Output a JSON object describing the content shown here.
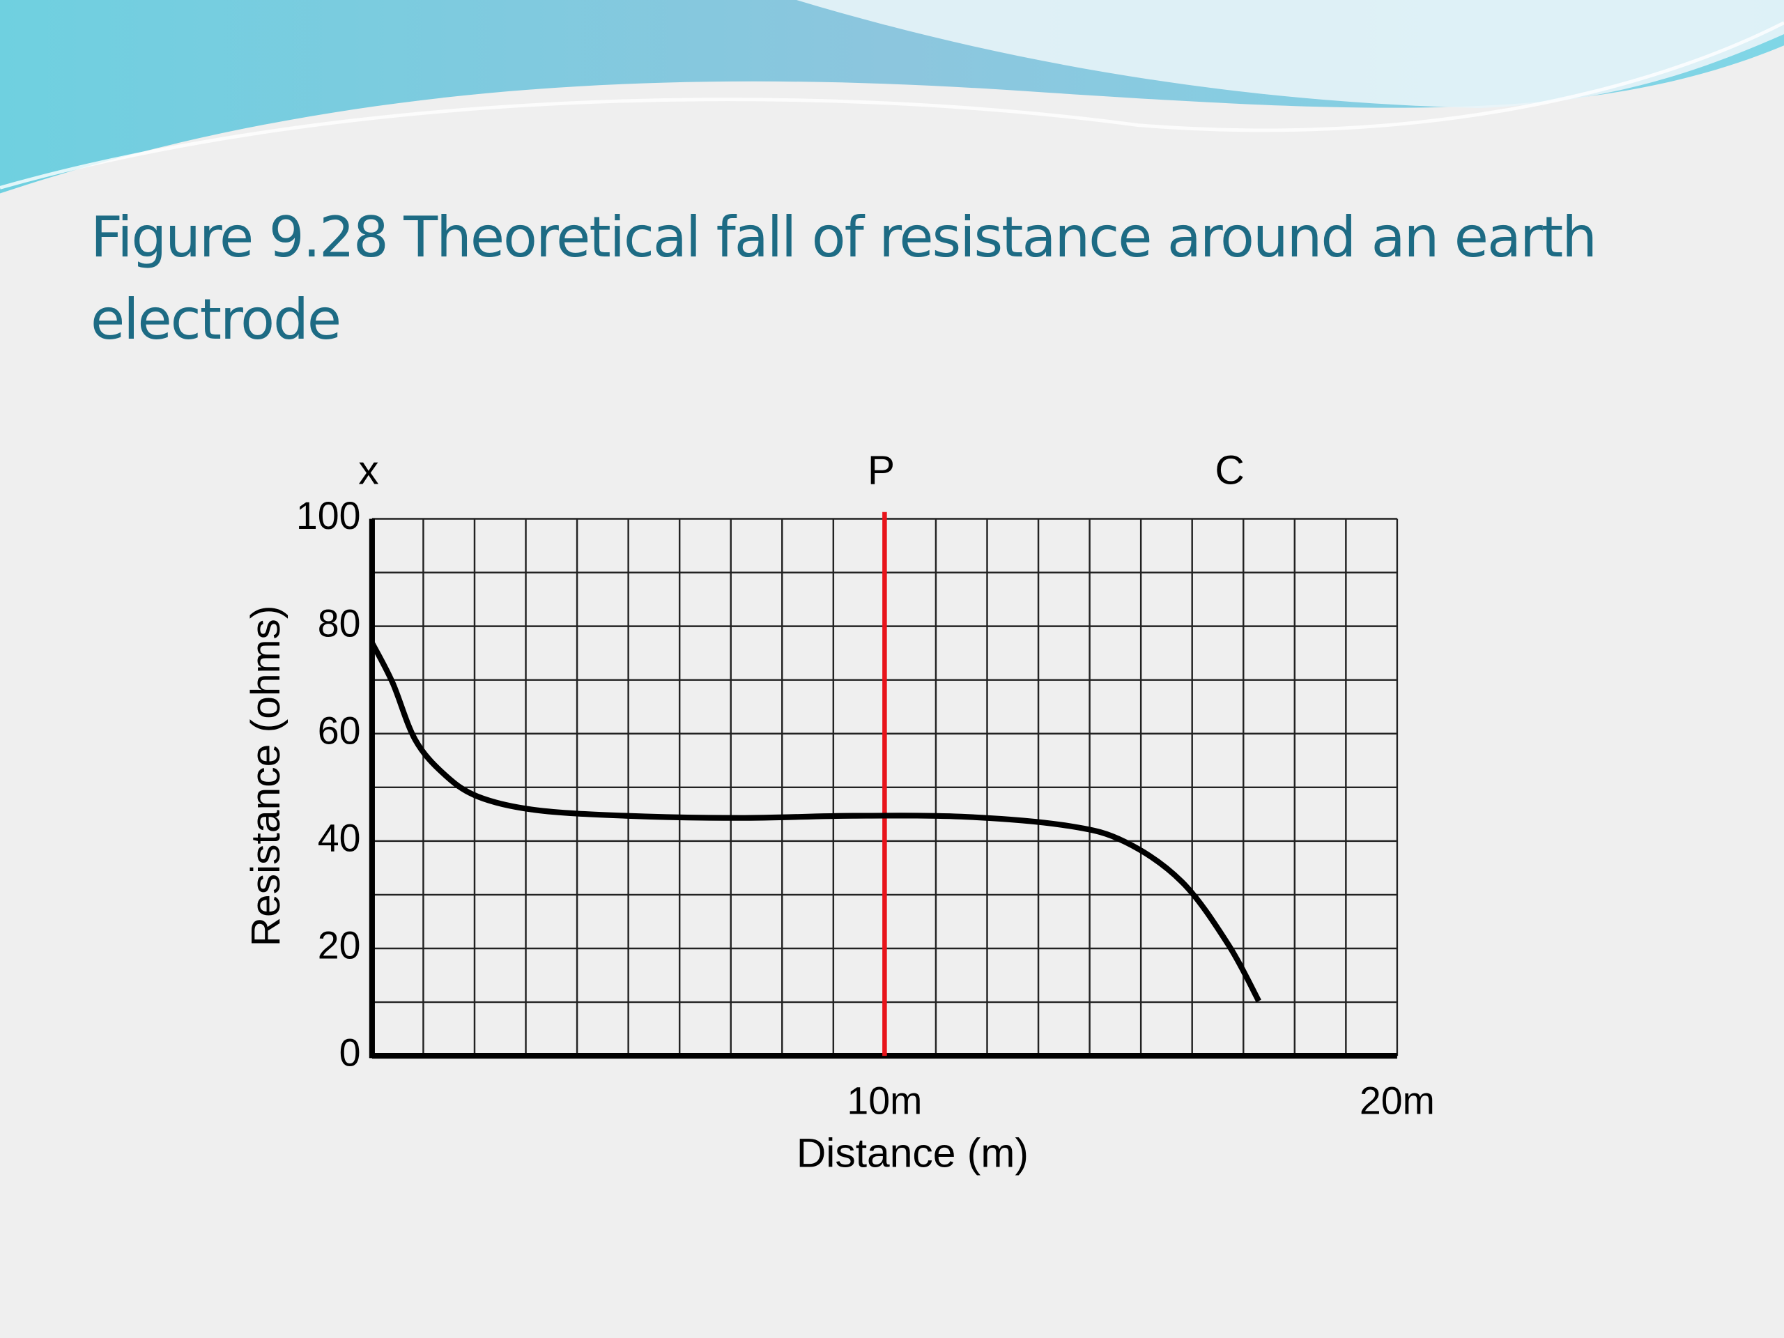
{
  "title": "Figure 9.28 Theoretical fall of resistance around an earth electrode",
  "chart_data": {
    "type": "line",
    "xlabel": "Distance (m)",
    "ylabel": "Resistance (ohms)",
    "xlim": [
      0,
      20
    ],
    "ylim": [
      0,
      100
    ],
    "xticks": [
      {
        "value": 10,
        "label": "10m"
      },
      {
        "value": 20,
        "label": "20m"
      }
    ],
    "yticks": [
      0,
      20,
      40,
      60,
      80,
      100
    ],
    "xgrid": [
      0,
      1,
      2,
      3,
      4,
      5,
      6,
      7,
      8,
      9,
      10,
      11,
      12,
      13,
      14,
      15,
      16,
      17,
      18,
      19,
      20
    ],
    "ygrid": [
      0,
      10,
      20,
      30,
      40,
      50,
      60,
      70,
      80,
      90,
      100
    ],
    "grid": true,
    "series": [
      {
        "color": "#000000",
        "x": [
          0,
          0.4,
          0.84,
          1.4,
          2.06,
          3.17,
          4.95,
          7.17,
          9.39,
          11.6,
          13.6,
          14.7,
          15.8,
          16.7,
          17.3
        ],
        "values": [
          76.9,
          69.5,
          58.9,
          52.5,
          48.3,
          45.8,
          44.7,
          44.3,
          44.7,
          44.5,
          42.8,
          39.8,
          32.4,
          20.8,
          10.2
        ]
      }
    ],
    "markers": [
      {
        "label": "x",
        "x": 0
      },
      {
        "label": "P",
        "x": 10,
        "color": "#e8141b",
        "line": true
      },
      {
        "label": "C",
        "x": 16.8
      }
    ]
  }
}
